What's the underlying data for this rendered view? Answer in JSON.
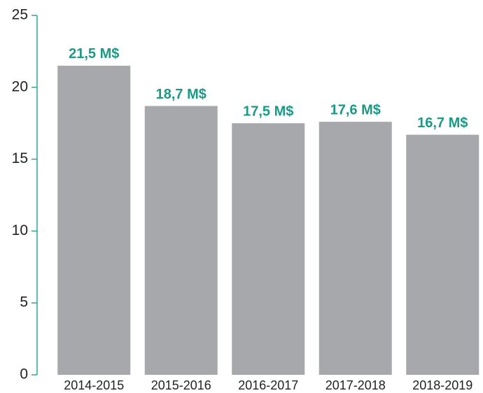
{
  "chart_data": {
    "type": "bar",
    "categories": [
      "2014-2015",
      "2015-2016",
      "2016-2017",
      "2017-2018",
      "2018-2019"
    ],
    "values": [
      21.5,
      18.7,
      17.5,
      17.6,
      16.7
    ],
    "value_labels": [
      "21,5 M$",
      "18,7 M$",
      "17,5 M$",
      "17,6 M$",
      "16,7 M$"
    ],
    "color": "#a7a8ab",
    "label_color": "#1a9a86",
    "axis_color": "#2aa894",
    "ylim": [
      0,
      25
    ],
    "yticks": [
      0,
      5,
      10,
      15,
      20,
      25
    ],
    "grid": false
  }
}
